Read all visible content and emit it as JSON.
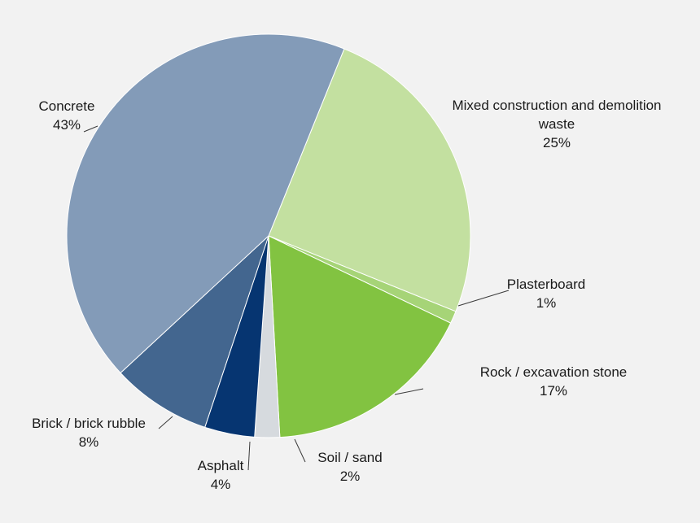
{
  "chart_data": {
    "type": "pie",
    "slices": [
      {
        "label": "Mixed construction and demolition waste",
        "label_lines": [
          "Mixed construction and demolition",
          "waste"
        ],
        "percent_label": "25%",
        "value": 25,
        "color": "#c3e0a0"
      },
      {
        "label": "Plasterboard",
        "label_lines": [
          "Plasterboard"
        ],
        "percent_label": "1%",
        "value": 1,
        "color": "#a6d477"
      },
      {
        "label": "Rock / excavation stone",
        "label_lines": [
          "Rock / excavation stone"
        ],
        "percent_label": "17%",
        "value": 17,
        "color": "#82c341"
      },
      {
        "label": "Soil / sand",
        "label_lines": [
          "Soil / sand"
        ],
        "percent_label": "2%",
        "value": 2,
        "color": "#d6dade"
      },
      {
        "label": "Asphalt",
        "label_lines": [
          "Asphalt"
        ],
        "percent_label": "4%",
        "value": 4,
        "color": "#063571"
      },
      {
        "label": "Brick / brick rubble",
        "label_lines": [
          "Brick / brick rubble"
        ],
        "percent_label": "8%",
        "value": 8,
        "color": "#43668f"
      },
      {
        "label": "Concrete",
        "label_lines": [
          "Concrete"
        ],
        "percent_label": "43%",
        "value": 43,
        "color": "#839bb8"
      }
    ],
    "start_angle_deg": 22
  }
}
